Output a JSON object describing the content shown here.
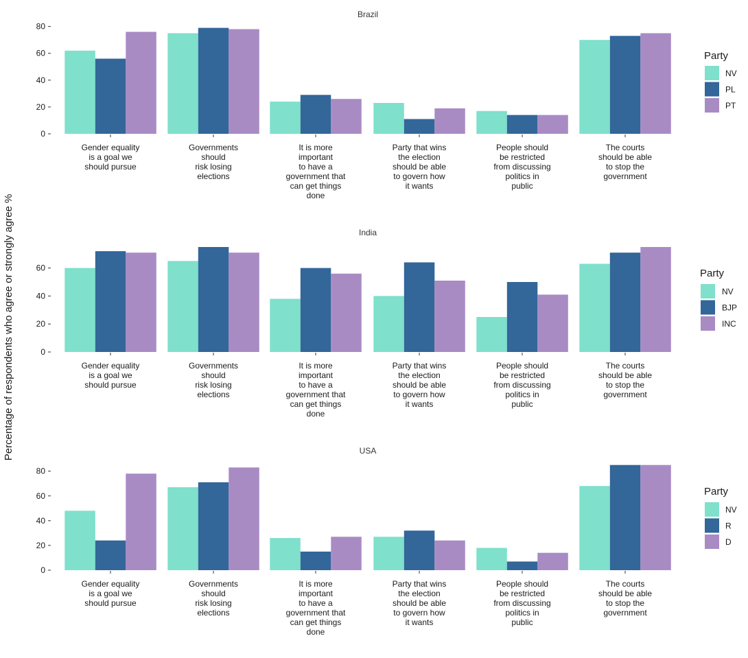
{
  "ylabel": "Percentage of respondents who agree or strongly agree %",
  "categories": [
    [
      "Gender equality",
      "is a goal we",
      "should pursue"
    ],
    [
      "Governments",
      "should",
      "risk losing",
      "elections"
    ],
    [
      "It is more",
      "important",
      "to have a",
      "government that",
      "can get things",
      "done"
    ],
    [
      "Party that wins",
      "the election",
      "should be able",
      "to govern how",
      "it wants"
    ],
    [
      "People should",
      "be restricted",
      "from discussing",
      "politics in",
      "public"
    ],
    [
      "The courts",
      "should be able",
      "to stop the",
      "government"
    ]
  ],
  "colors": {
    "NV": "#7fe0cc",
    "party2": "#336699",
    "party3": "#a98bc4"
  },
  "chart_data": [
    {
      "type": "bar",
      "title": "Brazil",
      "ylabel": "Percentage of respondents who agree or strongly agree %",
      "categories": [
        "Gender equality is a goal we should pursue",
        "Governments should risk losing elections",
        "It is more important to have a government that can get things done",
        "Party that wins the election should be able to govern how it wants",
        "People should be restricted from discussing politics in public",
        "The courts should be able to stop the government"
      ],
      "ylim": [
        0,
        80
      ],
      "yticks": [
        0,
        20,
        40,
        60,
        80
      ],
      "legend_title": "Party",
      "legend_position": "right",
      "series": [
        {
          "name": "NV",
          "color": "#7fe0cc",
          "values": [
            62,
            75,
            24,
            23,
            17,
            70
          ]
        },
        {
          "name": "PL",
          "color": "#336699",
          "values": [
            56,
            79,
            29,
            11,
            14,
            73
          ]
        },
        {
          "name": "PT",
          "color": "#a98bc4",
          "values": [
            76,
            78,
            26,
            19,
            14,
            75
          ]
        }
      ]
    },
    {
      "type": "bar",
      "title": "India",
      "ylabel": "Percentage of respondents who agree or strongly agree %",
      "categories": [
        "Gender equality is a goal we should pursue",
        "Governments should risk losing elections",
        "It is more important to have a government that can get things done",
        "Party that wins the election should be able to govern how it wants",
        "People should be restricted from discussing politics in public",
        "The courts should be able to stop the government"
      ],
      "ylim": [
        0,
        75
      ],
      "yticks": [
        0,
        20,
        40,
        60
      ],
      "legend_title": "Party",
      "legend_position": "right",
      "series": [
        {
          "name": "NV",
          "color": "#7fe0cc",
          "values": [
            60,
            65,
            38,
            40,
            25,
            63
          ]
        },
        {
          "name": "BJP",
          "color": "#336699",
          "values": [
            72,
            75,
            60,
            64,
            50,
            71
          ]
        },
        {
          "name": "INC",
          "color": "#a98bc4",
          "values": [
            71,
            71,
            56,
            51,
            41,
            75
          ]
        }
      ]
    },
    {
      "type": "bar",
      "title": "USA",
      "ylabel": "Percentage of respondents who agree or strongly agree %",
      "categories": [
        "Gender equality is a goal we should pursue",
        "Governments should risk losing elections",
        "It is more important to have a government that can get things done",
        "Party that wins the election should be able to govern how it wants",
        "People should be restricted from discussing politics in public",
        "The courts should be able to stop the government"
      ],
      "ylim": [
        0,
        85
      ],
      "yticks": [
        0,
        20,
        40,
        60,
        80
      ],
      "legend_title": "Party",
      "legend_position": "right",
      "series": [
        {
          "name": "NV",
          "color": "#7fe0cc",
          "values": [
            48,
            67,
            26,
            27,
            18,
            68
          ]
        },
        {
          "name": "R",
          "color": "#336699",
          "values": [
            24,
            71,
            15,
            32,
            7,
            85
          ]
        },
        {
          "name": "D",
          "color": "#a98bc4",
          "values": [
            78,
            83,
            27,
            24,
            14,
            85
          ]
        }
      ]
    }
  ]
}
